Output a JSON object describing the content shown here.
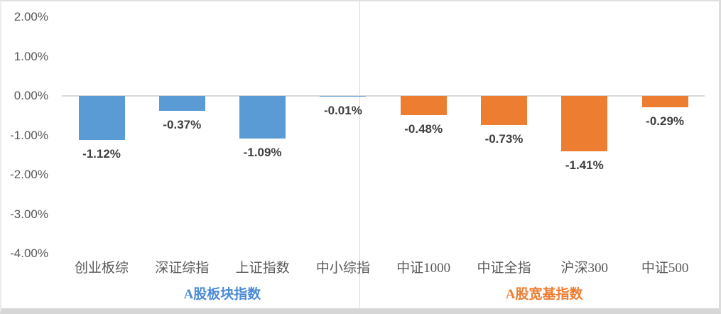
{
  "chart_data": {
    "type": "bar",
    "title": "",
    "xlabel": "",
    "ylabel": "",
    "categories": [
      "创业板综",
      "深证综指",
      "上证指数",
      "中小综指",
      "中证1000",
      "中证全指",
      "沪深300",
      "中证500"
    ],
    "values": [
      -1.12,
      -0.37,
      -1.09,
      -0.01,
      -0.48,
      -0.73,
      -1.41,
      -0.29
    ],
    "data_labels": [
      "-1.12%",
      "-0.37%",
      "-1.09%",
      "-0.01%",
      "-0.48%",
      "-0.73%",
      "-1.41%",
      "-0.29%"
    ],
    "groups": [
      {
        "name": "A股板块指数",
        "label_color": "#4C8BD5",
        "bar_color": "#5B9BD5",
        "indices": [
          0,
          1,
          2,
          3
        ]
      },
      {
        "name": "A股宽基指数",
        "label_color": "#ED7D31",
        "bar_color": "#ED7D31",
        "indices": [
          4,
          5,
          6,
          7
        ]
      }
    ],
    "y_ticks": [
      {
        "label": "2.00%",
        "value": 2
      },
      {
        "label": "1.00%",
        "value": 1
      },
      {
        "label": "0.00%",
        "value": 0
      },
      {
        "label": "-1.00%",
        "value": -1
      },
      {
        "label": "-2.00%",
        "value": -2
      },
      {
        "label": "-3.00%",
        "value": -3
      },
      {
        "label": "-4.00%",
        "value": -4
      }
    ],
    "ylim": [
      -4,
      2
    ],
    "grid": false,
    "zero_line": true,
    "group_divider": true,
    "legend_position": "none"
  },
  "style": {
    "bar_blue": "#5B9BD5",
    "bar_orange": "#ED7D31",
    "tick_label_color": "#595959",
    "category_label_color": "#595959",
    "data_label_color": "#3F3F3F",
    "axis_line_color": "#D9D9D9",
    "divider_color": "#D9D9D9",
    "background": "#FFFFFF"
  }
}
